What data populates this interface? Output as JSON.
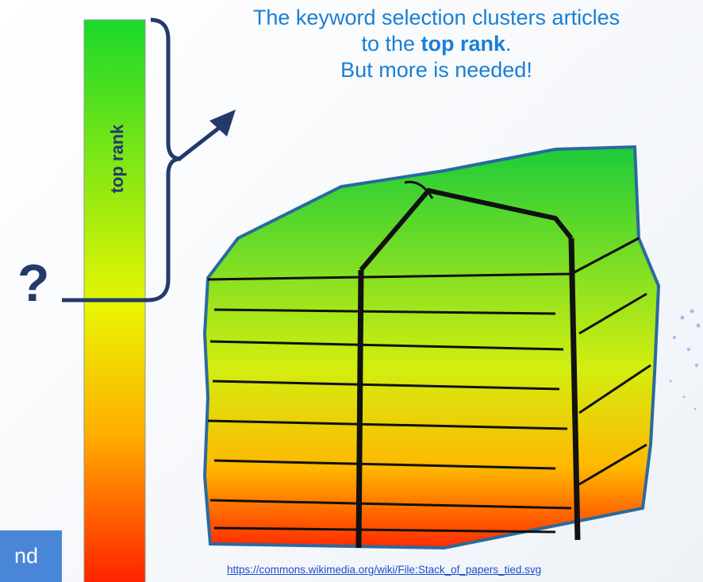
{
  "callout": {
    "line1": "The keyword selection clusters articles",
    "line2_prefix": "to the",
    "line2_bold": "top rank",
    "line2_suffix": ".",
    "line3": "But more is needed!"
  },
  "bar_label": "top rank",
  "question": "?",
  "source_link": "https://commons.wikimedia.org/wiki/File:Stack_of_papers_tied.svg",
  "footer_tab": "nd"
}
